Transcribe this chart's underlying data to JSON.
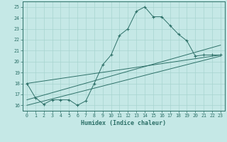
{
  "xlabel": "Humidex (Indice chaleur)",
  "xlim": [
    -0.5,
    23.5
  ],
  "ylim": [
    15.5,
    25.5
  ],
  "yticks": [
    16,
    17,
    18,
    19,
    20,
    21,
    22,
    23,
    24,
    25
  ],
  "xticks": [
    0,
    1,
    2,
    3,
    4,
    5,
    6,
    7,
    8,
    9,
    10,
    11,
    12,
    13,
    14,
    15,
    16,
    17,
    18,
    19,
    20,
    21,
    22,
    23
  ],
  "bg_color": "#c5e8e6",
  "line_color": "#2d7068",
  "grid_color": "#a8d4d0",
  "series_main": {
    "x": [
      0,
      1,
      2,
      3,
      4,
      5,
      6,
      7,
      8,
      9,
      10,
      11,
      12,
      13,
      14,
      15,
      16,
      17,
      18,
      19,
      20,
      21,
      22,
      23
    ],
    "y": [
      18.0,
      16.7,
      16.1,
      16.5,
      16.5,
      16.5,
      16.0,
      16.4,
      18.0,
      19.7,
      20.6,
      22.4,
      23.0,
      24.6,
      25.0,
      24.1,
      24.1,
      23.3,
      22.5,
      21.9,
      20.5,
      20.6,
      20.6,
      20.6
    ]
  },
  "series_lines": [
    {
      "x": [
        0,
        23
      ],
      "y": [
        18.0,
        20.6
      ]
    },
    {
      "x": [
        0,
        23
      ],
      "y": [
        16.5,
        21.5
      ]
    },
    {
      "x": [
        0,
        23
      ],
      "y": [
        16.0,
        20.5
      ]
    }
  ]
}
